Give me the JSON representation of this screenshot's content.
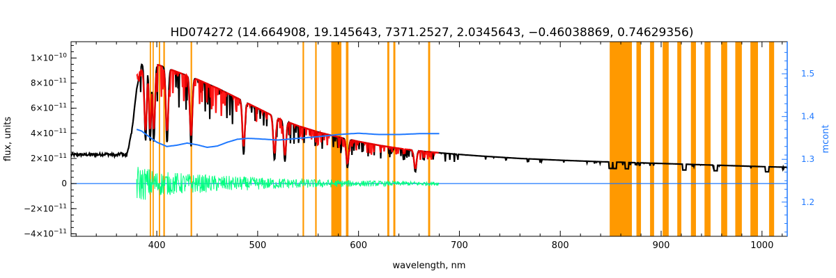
{
  "chart_data": {
    "type": "line",
    "title": "HD074272    (14.664908, 19.145643, 7371.2527, 2.0345643, −0.46038869, 0.74629356)",
    "xlabel": "wavelength, nm",
    "ylabel": "flux, units",
    "y2label": "mcont",
    "xlim": [
      315,
      1025
    ],
    "ylim": [
      -4.2e-11,
      1.13e-10
    ],
    "y2lim": [
      1.12,
      1.575
    ],
    "grid": false,
    "xticks": [
      {
        "v": 400,
        "label": "400"
      },
      {
        "v": 500,
        "label": "500"
      },
      {
        "v": 600,
        "label": "600"
      },
      {
        "v": 700,
        "label": "700"
      },
      {
        "v": 800,
        "label": "800"
      },
      {
        "v": 900,
        "label": "900"
      },
      {
        "v": 1000,
        "label": "1000"
      }
    ],
    "yticks": [
      {
        "v": 1e-10,
        "m": "1",
        "e": "−10"
      },
      {
        "v": 8e-11,
        "m": "8",
        "e": "−11"
      },
      {
        "v": 6e-11,
        "m": "6",
        "e": "−11"
      },
      {
        "v": 4e-11,
        "m": "4",
        "e": "−11"
      },
      {
        "v": 2e-11,
        "m": "2",
        "e": "−11"
      },
      {
        "v": 0,
        "m": "0",
        "e": ""
      },
      {
        "v": -2e-11,
        "m": "−2",
        "e": "−11"
      },
      {
        "v": -4e-11,
        "m": "−4",
        "e": "−11"
      }
    ],
    "y2ticks": [
      {
        "v": 1.2,
        "label": "1.2"
      },
      {
        "v": 1.3,
        "label": "1.3"
      },
      {
        "v": 1.4,
        "label": "1.4"
      },
      {
        "v": 1.5,
        "label": "1.5"
      }
    ],
    "masked_regions": [
      [
        393.0,
        394.3
      ],
      [
        395.8,
        397.0
      ],
      [
        402.0,
        403.3
      ],
      [
        406.5,
        408.0
      ],
      [
        433.5,
        435.0
      ],
      [
        544.5,
        546.0
      ],
      [
        557.0,
        558.5
      ],
      [
        573.0,
        583.0
      ],
      [
        587.5,
        590.0
      ],
      [
        628.5,
        630.5
      ],
      [
        634.5,
        636.5
      ],
      [
        669.0,
        671.0
      ],
      [
        849.0,
        871.0
      ],
      [
        875.5,
        880.0
      ],
      [
        889.0,
        893.0
      ],
      [
        901.5,
        907.5
      ],
      [
        916.0,
        920.0
      ],
      [
        929.5,
        934.5
      ],
      [
        943.0,
        949.0
      ],
      [
        959.5,
        965.5
      ],
      [
        973.5,
        980.0
      ],
      [
        988.5,
        996.0
      ],
      [
        1007.0,
        1012.0
      ]
    ],
    "series": [
      {
        "color": "#000000",
        "x": [
          315,
          320,
          330,
          340,
          350,
          360,
          365,
          370,
          375,
          380,
          385,
          390,
          395,
          400,
          410,
          420,
          440,
          460,
          480,
          500,
          520,
          540,
          560,
          580,
          600,
          620,
          640,
          660,
          680,
          700,
          720,
          740,
          760,
          780,
          800,
          820,
          840,
          860,
          880,
          900,
          920,
          940,
          960,
          980,
          1000,
          1025
        ],
        "y": [
          2.3e-11,
          2.3e-11,
          2.3e-11,
          2.3e-11,
          2.35e-11,
          2.25e-11,
          2.4e-11,
          2.2e-11,
          4e-11,
          7.5e-11,
          9.5e-11,
          9.8e-11,
          9.6e-11,
          9.5e-11,
          9.2e-11,
          8.9e-11,
          8.3e-11,
          7.6e-11,
          6.8e-11,
          6e-11,
          5.2e-11,
          4.6e-11,
          4.1e-11,
          3.7e-11,
          3.35e-11,
          3.05e-11,
          2.8e-11,
          2.6e-11,
          2.45e-11,
          2.32e-11,
          2.2e-11,
          2.1e-11,
          2e-11,
          1.93e-11,
          1.86e-11,
          1.8e-11,
          1.74e-11,
          1.7e-11,
          1.65e-11,
          1.6e-11,
          1.55e-11,
          1.5e-11,
          1.45e-11,
          1.4e-11,
          1.35e-11,
          1.3e-11
        ]
      },
      {
        "color": "#ff0000",
        "x": [
          380,
          390,
          400,
          420,
          440,
          460,
          480,
          500,
          520,
          540,
          560,
          580,
          600,
          620,
          640,
          660,
          680
        ],
        "y": [
          8.6e-11,
          9.5e-11,
          9.5e-11,
          8.9e-11,
          8.3e-11,
          7.6e-11,
          6.8e-11,
          6e-11,
          5.2e-11,
          4.6e-11,
          4.1e-11,
          3.7e-11,
          3.35e-11,
          3.05e-11,
          2.8e-11,
          2.6e-11,
          2.45e-11
        ]
      },
      {
        "color": "#00ff7f",
        "x": [
          380,
          390,
          400,
          450,
          500,
          550,
          600,
          630,
          680
        ],
        "amplitude": [
          1.5e-11,
          1.3e-11,
          1e-11,
          7e-12,
          5e-12,
          3.5e-12,
          2.5e-12,
          2e-12,
          1.5e-12
        ]
      },
      {
        "color": "#1e78ff",
        "axis": "y2",
        "x": [
          380,
          385,
          390,
          400,
          410,
          420,
          430,
          440,
          450,
          460,
          470,
          480,
          490,
          500,
          520,
          540,
          560,
          580,
          600,
          620,
          640,
          660,
          680
        ],
        "y": [
          1.37,
          1.366,
          1.357,
          1.34,
          1.33,
          1.333,
          1.338,
          1.334,
          1.328,
          1.331,
          1.34,
          1.347,
          1.349,
          1.348,
          1.345,
          1.349,
          1.353,
          1.358,
          1.361,
          1.358,
          1.358,
          1.36,
          1.36
        ]
      },
      {
        "color": "#1e78ff",
        "x": [
          315,
          1025
        ],
        "y": [
          0,
          0
        ]
      }
    ]
  }
}
